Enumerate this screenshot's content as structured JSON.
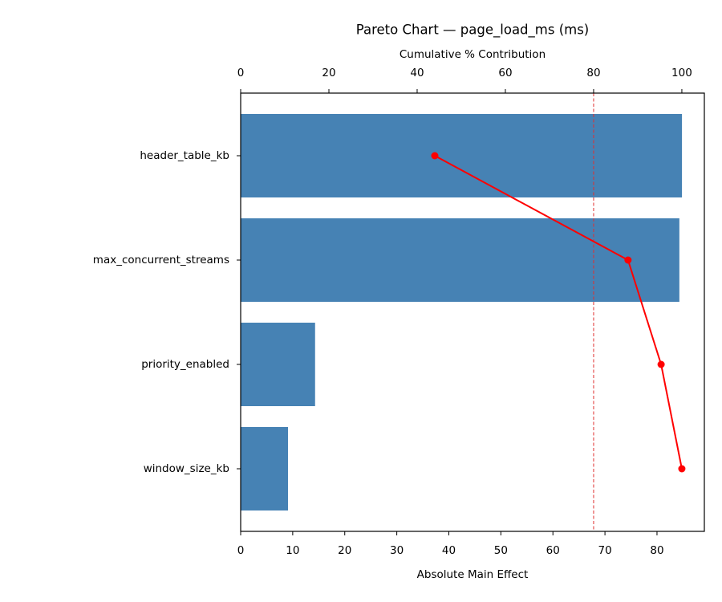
{
  "chart_data": {
    "type": "pareto",
    "title": "Pareto Chart — page_load_ms (ms)",
    "xlabel": "Absolute Main Effect",
    "x2label": "Cumulative % Contribution",
    "categories": [
      "header_table_kb",
      "max_concurrent_streams",
      "priority_enabled",
      "window_size_kb"
    ],
    "series": [
      {
        "color": "#4682b4",
        "values": [
          84.8,
          84.3,
          14.3,
          9.1
        ]
      },
      {
        "color": "#ff0000",
        "axis": "x2",
        "values": [
          44.0,
          87.8,
          95.3,
          100
        ]
      }
    ],
    "xlim": [
      0,
      89.1
    ],
    "xticks": [
      0,
      10,
      20,
      30,
      40,
      50,
      60,
      70,
      80
    ],
    "x2lim": [
      0,
      105.1
    ],
    "x2ticks": [
      0,
      20,
      40,
      60,
      80,
      100
    ],
    "threshold": 80,
    "threshold_color": "#e03030"
  }
}
